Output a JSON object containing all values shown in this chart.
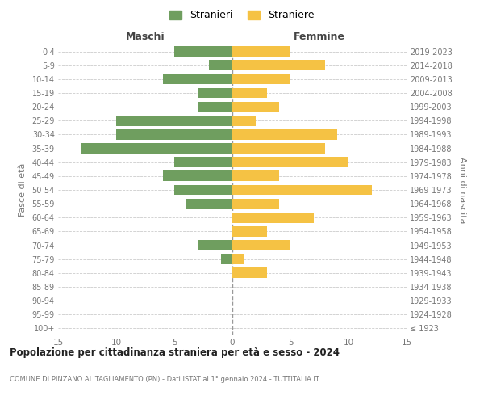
{
  "age_groups": [
    "100+",
    "95-99",
    "90-94",
    "85-89",
    "80-84",
    "75-79",
    "70-74",
    "65-69",
    "60-64",
    "55-59",
    "50-54",
    "45-49",
    "40-44",
    "35-39",
    "30-34",
    "25-29",
    "20-24",
    "15-19",
    "10-14",
    "5-9",
    "0-4"
  ],
  "birth_years": [
    "≤ 1923",
    "1924-1928",
    "1929-1933",
    "1934-1938",
    "1939-1943",
    "1944-1948",
    "1949-1953",
    "1954-1958",
    "1959-1963",
    "1964-1968",
    "1969-1973",
    "1974-1978",
    "1979-1983",
    "1984-1988",
    "1989-1993",
    "1994-1998",
    "1999-2003",
    "2004-2008",
    "2009-2013",
    "2014-2018",
    "2019-2023"
  ],
  "maschi": [
    0,
    0,
    0,
    0,
    0,
    1,
    3,
    0,
    0,
    4,
    5,
    6,
    5,
    13,
    10,
    10,
    3,
    3,
    6,
    2,
    5
  ],
  "femmine": [
    0,
    0,
    0,
    0,
    3,
    1,
    5,
    3,
    7,
    4,
    12,
    4,
    10,
    8,
    9,
    2,
    4,
    3,
    5,
    8,
    5
  ],
  "male_color": "#6f9e5f",
  "female_color": "#f5c244",
  "grid_color": "#cccccc",
  "title": "Popolazione per cittadinanza straniera per età e sesso - 2024",
  "subtitle": "COMUNE DI PINZANO AL TAGLIAMENTO (PN) - Dati ISTAT al 1° gennaio 2024 - TUTTITALIA.IT",
  "ylabel_left": "Fasce di età",
  "ylabel_right": "Anni di nascita",
  "label_maschi": "Maschi",
  "label_femmine": "Femmine",
  "legend_maschi": "Stranieri",
  "legend_femmine": "Straniere",
  "xlim": 15,
  "bar_height": 0.75
}
